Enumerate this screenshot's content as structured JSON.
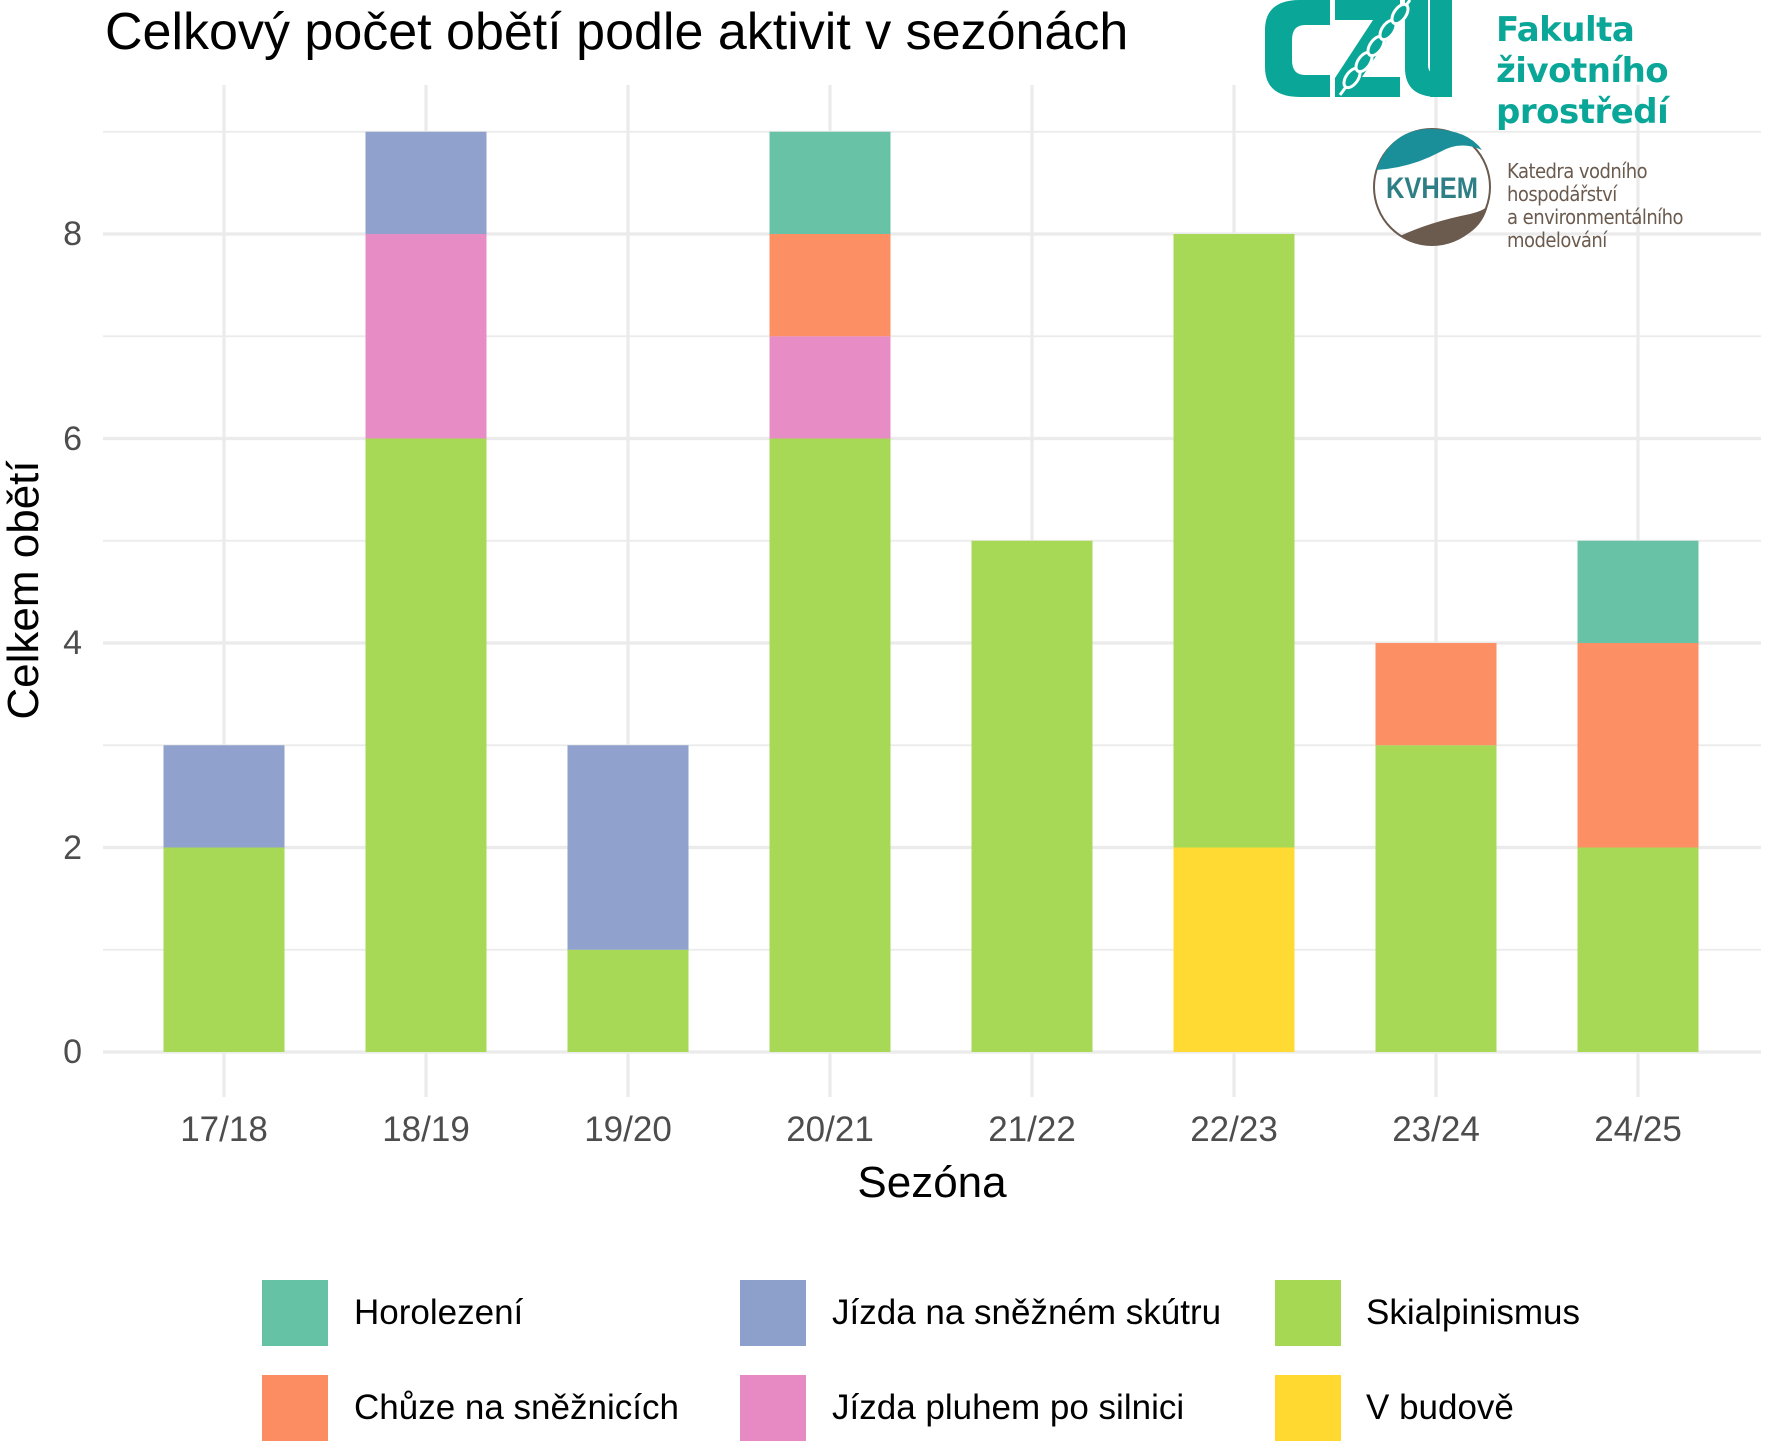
{
  "title": "Celkový počet obětí podle aktivit v sezónách",
  "logos": {
    "czu": {
      "mark": "CZU",
      "line1": "Fakulta životního",
      "line2": "prostředí",
      "color": "#0AA698"
    },
    "kvhem": {
      "mark": "KVHEM",
      "line1": "Katedra vodního hospodářství",
      "line2": "a environmentálního modelování",
      "color": "#6B5A4E"
    }
  },
  "chart_data": {
    "type": "bar",
    "stacked": true,
    "title": "Celkový počet obětí podle aktivit v sezónách",
    "xlabel": "Sezóna",
    "ylabel": "Celkem obětí",
    "categories": [
      "17/18",
      "18/19",
      "19/20",
      "20/21",
      "21/22",
      "22/23",
      "23/24",
      "24/25"
    ],
    "ylim": [
      0,
      9.45
    ],
    "yticks": [
      0,
      2,
      4,
      6,
      8
    ],
    "grid": true,
    "legend_position": "bottom",
    "stack_order_bottom_to_top": [
      "V budově",
      "Skialpinismus",
      "Jízda pluhem po silnici",
      "Jízda na sněžném skútru",
      "Chůze na sněžnicích",
      "Horolezení"
    ],
    "series": [
      {
        "name": "Horolezení",
        "color": "#66C2A5",
        "values": [
          0,
          0,
          0,
          1,
          0,
          0,
          0,
          1
        ]
      },
      {
        "name": "Chůze na sněžnicích",
        "color": "#FC8D62",
        "values": [
          0,
          0,
          0,
          1,
          0,
          0,
          1,
          2
        ]
      },
      {
        "name": "Jízda na sněžném skútru",
        "color": "#8DA0CB",
        "values": [
          1,
          1,
          2,
          0,
          0,
          0,
          0,
          0
        ]
      },
      {
        "name": "Jízda pluhem po silnici",
        "color": "#E78AC3",
        "values": [
          0,
          2,
          0,
          1,
          0,
          0,
          0,
          0
        ]
      },
      {
        "name": "Skialpinismus",
        "color": "#A6D854",
        "values": [
          2,
          6,
          1,
          6,
          5,
          6,
          3,
          2
        ]
      },
      {
        "name": "V budově",
        "color": "#FFD92F",
        "values": [
          0,
          0,
          0,
          0,
          0,
          2,
          0,
          0
        ]
      }
    ],
    "totals": [
      3,
      9,
      3,
      9,
      5,
      8,
      4,
      5
    ]
  },
  "legend": {
    "items": [
      {
        "label": "Horolezení",
        "color": "#66C2A5"
      },
      {
        "label": "Chůze na sněžnicích",
        "color": "#FC8D62"
      },
      {
        "label": "Jízda na sněžném skútru",
        "color": "#8DA0CB"
      },
      {
        "label": "Jízda pluhem po silnici",
        "color": "#E78AC3"
      },
      {
        "label": "Skialpinismus",
        "color": "#A6D854"
      },
      {
        "label": "V budově",
        "color": "#FFD92F"
      }
    ]
  }
}
